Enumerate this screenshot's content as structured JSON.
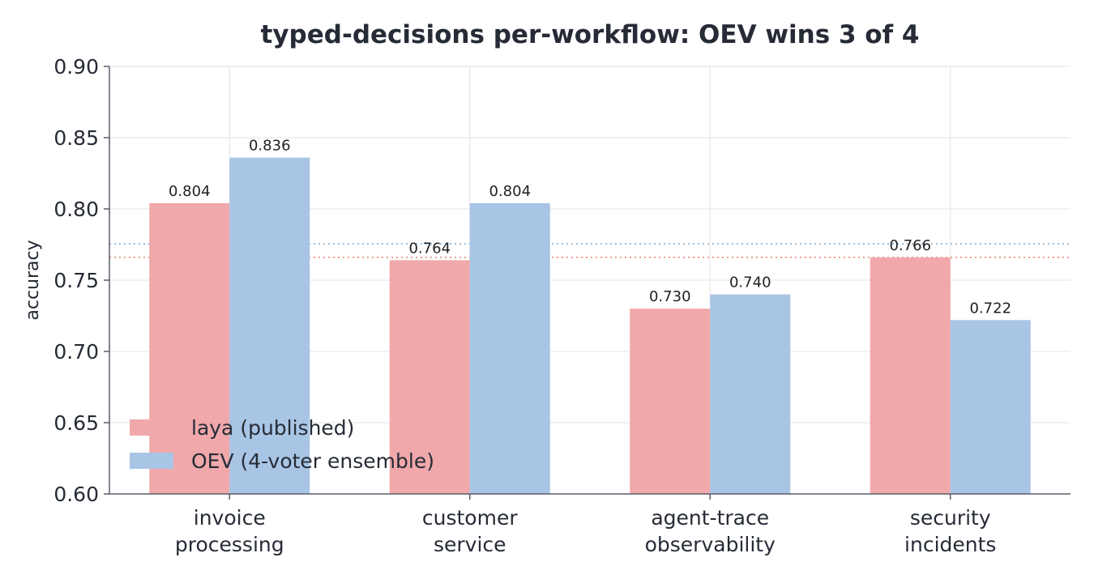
{
  "chart_data": {
    "type": "bar",
    "title": "typed-decisions per-workflow: OEV wins 3 of 4",
    "xlabel": "",
    "ylabel": "accuracy",
    "ylim": [
      0.6,
      0.9
    ],
    "yticks": [
      "0.60",
      "0.65",
      "0.70",
      "0.75",
      "0.80",
      "0.85",
      "0.90"
    ],
    "grid": true,
    "legend_position": "lower-left",
    "categories": [
      [
        "invoice",
        "processing"
      ],
      [
        "customer",
        "service"
      ],
      [
        "agent-trace",
        "observability"
      ],
      [
        "security",
        "incidents"
      ]
    ],
    "series": [
      {
        "name": "laya (published)",
        "color": "#f0a8aa",
        "values": [
          0.804,
          0.764,
          0.73,
          0.766
        ],
        "labels": [
          "0.804",
          "0.764",
          "0.730",
          "0.766"
        ],
        "reference_line": 0.766,
        "reference_color": "#e8907e"
      },
      {
        "name": "OEV (4-voter ensemble)",
        "color": "#a9c5e5",
        "values": [
          0.836,
          0.804,
          0.74,
          0.722
        ],
        "labels": [
          "0.836",
          "0.804",
          "0.740",
          "0.722"
        ],
        "reference_line": 0.7755,
        "reference_color": "#8ab4d9"
      }
    ]
  }
}
